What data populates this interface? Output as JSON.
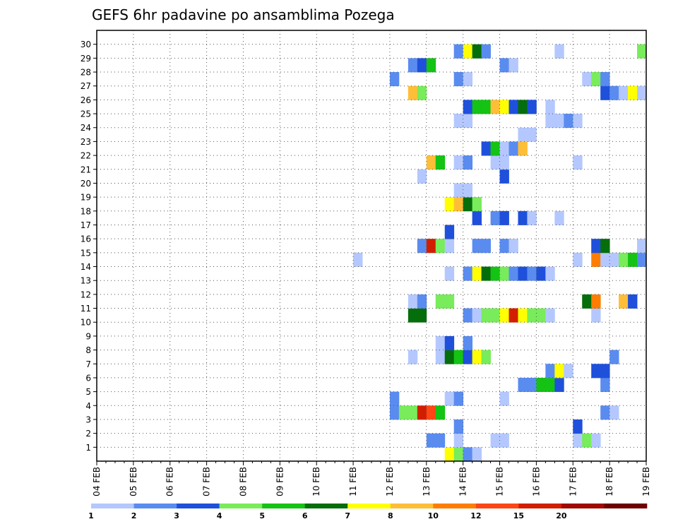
{
  "chart_data": {
    "type": "heatmap",
    "title": "GEFS 6hr padavine po ansamblima Pozega",
    "xlabel": "",
    "ylabel": "",
    "x_ticks": [
      "04 FEB",
      "05 FEB",
      "06 FEB",
      "07 FEB",
      "08 FEB",
      "09 FEB",
      "10 FEB",
      "11 FEB",
      "12 FEB",
      "13 FEB",
      "14 FEB",
      "15 FEB",
      "16 FEB",
      "17 FEB",
      "18 FEB",
      "19 FEB"
    ],
    "y_ticks": [
      1,
      2,
      3,
      4,
      5,
      6,
      7,
      8,
      9,
      10,
      11,
      12,
      13,
      14,
      15,
      16,
      17,
      18,
      19,
      20,
      21,
      22,
      23,
      24,
      25,
      26,
      27,
      28,
      29,
      30
    ],
    "ylim": [
      0,
      30
    ],
    "x_range": [
      "04 FEB 00Z",
      "19 FEB 00Z"
    ],
    "time_step_hours": 6,
    "grid": true,
    "colorbar": {
      "levels": [
        "1",
        "2",
        "3",
        "4",
        "5",
        "6",
        "7",
        "8",
        "10",
        "12",
        "15",
        "20",
        ""
      ],
      "colors": [
        "#b4c8ff",
        "#5a8cf0",
        "#1e50dc",
        "#78ec5a",
        "#14c314",
        "#046e0a",
        "#ffff00",
        "#ffbe37",
        "#ff7d00",
        "#ff4614",
        "#d21e00",
        "#a00a00",
        "#6e0000"
      ]
    },
    "cells": [
      {
        "member": 0,
        "step": 38,
        "level": 7
      },
      {
        "member": 0,
        "step": 39,
        "level": 4
      },
      {
        "member": 0,
        "step": 40,
        "level": 2
      },
      {
        "member": 0,
        "step": 41,
        "level": 1
      },
      {
        "member": 1,
        "step": 36,
        "level": 2
      },
      {
        "member": 1,
        "step": 37,
        "level": 2
      },
      {
        "member": 1,
        "step": 39,
        "level": 1
      },
      {
        "member": 1,
        "step": 43,
        "level": 1
      },
      {
        "member": 1,
        "step": 44,
        "level": 1
      },
      {
        "member": 1,
        "step": 52,
        "level": 1
      },
      {
        "member": 1,
        "step": 53,
        "level": 4
      },
      {
        "member": 1,
        "step": 54,
        "level": 1
      },
      {
        "member": 2,
        "step": 39,
        "level": 2
      },
      {
        "member": 2,
        "step": 52,
        "level": 3
      },
      {
        "member": 3,
        "step": 32,
        "level": 2
      },
      {
        "member": 3,
        "step": 33,
        "level": 4
      },
      {
        "member": 3,
        "step": 34,
        "level": 4
      },
      {
        "member": 3,
        "step": 35,
        "level": 11
      },
      {
        "member": 3,
        "step": 36,
        "level": 10
      },
      {
        "member": 3,
        "step": 37,
        "level": 5
      },
      {
        "member": 3,
        "step": 55,
        "level": 2
      },
      {
        "member": 3,
        "step": 56,
        "level": 1
      },
      {
        "member": 4,
        "step": 32,
        "level": 2
      },
      {
        "member": 4,
        "step": 38,
        "level": 1
      },
      {
        "member": 4,
        "step": 39,
        "level": 2
      },
      {
        "member": 4,
        "step": 44,
        "level": 1
      },
      {
        "member": 5,
        "step": 46,
        "level": 2
      },
      {
        "member": 5,
        "step": 47,
        "level": 2
      },
      {
        "member": 5,
        "step": 48,
        "level": 5
      },
      {
        "member": 5,
        "step": 49,
        "level": 5
      },
      {
        "member": 5,
        "step": 50,
        "level": 3
      },
      {
        "member": 5,
        "step": 55,
        "level": 2
      },
      {
        "member": 6,
        "step": 49,
        "level": 2
      },
      {
        "member": 6,
        "step": 50,
        "level": 7
      },
      {
        "member": 6,
        "step": 51,
        "level": 1
      },
      {
        "member": 6,
        "step": 54,
        "level": 3
      },
      {
        "member": 6,
        "step": 55,
        "level": 3
      },
      {
        "member": 7,
        "step": 34,
        "level": 1
      },
      {
        "member": 7,
        "step": 37,
        "level": 1
      },
      {
        "member": 7,
        "step": 38,
        "level": 6
      },
      {
        "member": 7,
        "step": 39,
        "level": 5
      },
      {
        "member": 7,
        "step": 40,
        "level": 3
      },
      {
        "member": 7,
        "step": 41,
        "level": 7
      },
      {
        "member": 7,
        "step": 42,
        "level": 4
      },
      {
        "member": 7,
        "step": 56,
        "level": 2
      },
      {
        "member": 8,
        "step": 37,
        "level": 1
      },
      {
        "member": 8,
        "step": 38,
        "level": 3
      },
      {
        "member": 8,
        "step": 40,
        "level": 2
      },
      {
        "member": 10,
        "step": 34,
        "level": 6
      },
      {
        "member": 10,
        "step": 35,
        "level": 6
      },
      {
        "member": 10,
        "step": 40,
        "level": 2
      },
      {
        "member": 10,
        "step": 41,
        "level": 1
      },
      {
        "member": 10,
        "step": 42,
        "level": 4
      },
      {
        "member": 10,
        "step": 43,
        "level": 4
      },
      {
        "member": 10,
        "step": 44,
        "level": 7
      },
      {
        "member": 10,
        "step": 45,
        "level": 11
      },
      {
        "member": 10,
        "step": 46,
        "level": 7
      },
      {
        "member": 10,
        "step": 47,
        "level": 4
      },
      {
        "member": 10,
        "step": 48,
        "level": 4
      },
      {
        "member": 10,
        "step": 49,
        "level": 1
      },
      {
        "member": 10,
        "step": 54,
        "level": 1
      },
      {
        "member": 11,
        "step": 34,
        "level": 1
      },
      {
        "member": 11,
        "step": 35,
        "level": 2
      },
      {
        "member": 11,
        "step": 37,
        "level": 4
      },
      {
        "member": 11,
        "step": 38,
        "level": 4
      },
      {
        "member": 11,
        "step": 53,
        "level": 6
      },
      {
        "member": 11,
        "step": 54,
        "level": 9
      },
      {
        "member": 11,
        "step": 57,
        "level": 8
      },
      {
        "member": 11,
        "step": 58,
        "level": 3
      },
      {
        "member": 13,
        "step": 38,
        "level": 1
      },
      {
        "member": 13,
        "step": 40,
        "level": 2
      },
      {
        "member": 13,
        "step": 41,
        "level": 7
      },
      {
        "member": 13,
        "step": 42,
        "level": 6
      },
      {
        "member": 13,
        "step": 43,
        "level": 5
      },
      {
        "member": 13,
        "step": 44,
        "level": 4
      },
      {
        "member": 13,
        "step": 45,
        "level": 2
      },
      {
        "member": 13,
        "step": 46,
        "level": 3
      },
      {
        "member": 13,
        "step": 47,
        "level": 2
      },
      {
        "member": 13,
        "step": 48,
        "level": 3
      },
      {
        "member": 13,
        "step": 49,
        "level": 1
      },
      {
        "member": 14,
        "step": 28,
        "level": 1
      },
      {
        "member": 14,
        "step": 52,
        "level": 1
      },
      {
        "member": 14,
        "step": 54,
        "level": 9
      },
      {
        "member": 14,
        "step": 55,
        "level": 1
      },
      {
        "member": 14,
        "step": 56,
        "level": 1
      },
      {
        "member": 14,
        "step": 57,
        "level": 4
      },
      {
        "member": 14,
        "step": 58,
        "level": 5
      },
      {
        "member": 14,
        "step": 59,
        "level": 2
      },
      {
        "member": 15,
        "step": 35,
        "level": 2
      },
      {
        "member": 15,
        "step": 36,
        "level": 11
      },
      {
        "member": 15,
        "step": 37,
        "level": 4
      },
      {
        "member": 15,
        "step": 38,
        "level": 1
      },
      {
        "member": 15,
        "step": 41,
        "level": 2
      },
      {
        "member": 15,
        "step": 42,
        "level": 2
      },
      {
        "member": 15,
        "step": 44,
        "level": 2
      },
      {
        "member": 15,
        "step": 45,
        "level": 1
      },
      {
        "member": 15,
        "step": 54,
        "level": 3
      },
      {
        "member": 15,
        "step": 55,
        "level": 6
      },
      {
        "member": 15,
        "step": 59,
        "level": 1
      },
      {
        "member": 16,
        "step": 38,
        "level": 3
      },
      {
        "member": 17,
        "step": 41,
        "level": 3
      },
      {
        "member": 17,
        "step": 43,
        "level": 2
      },
      {
        "member": 17,
        "step": 44,
        "level": 3
      },
      {
        "member": 17,
        "step": 46,
        "level": 3
      },
      {
        "member": 17,
        "step": 47,
        "level": 1
      },
      {
        "member": 17,
        "step": 50,
        "level": 1
      },
      {
        "member": 18,
        "step": 38,
        "level": 7
      },
      {
        "member": 18,
        "step": 39,
        "level": 8
      },
      {
        "member": 18,
        "step": 40,
        "level": 6
      },
      {
        "member": 18,
        "step": 41,
        "level": 4
      },
      {
        "member": 19,
        "step": 39,
        "level": 1
      },
      {
        "member": 19,
        "step": 40,
        "level": 1
      },
      {
        "member": 20,
        "step": 35,
        "level": 1
      },
      {
        "member": 20,
        "step": 44,
        "level": 3
      },
      {
        "member": 21,
        "step": 36,
        "level": 8
      },
      {
        "member": 21,
        "step": 37,
        "level": 5
      },
      {
        "member": 21,
        "step": 39,
        "level": 1
      },
      {
        "member": 21,
        "step": 40,
        "level": 2
      },
      {
        "member": 21,
        "step": 43,
        "level": 1
      },
      {
        "member": 21,
        "step": 44,
        "level": 1
      },
      {
        "member": 21,
        "step": 52,
        "level": 1
      },
      {
        "member": 22,
        "step": 42,
        "level": 3
      },
      {
        "member": 22,
        "step": 43,
        "level": 5
      },
      {
        "member": 22,
        "step": 44,
        "level": 1
      },
      {
        "member": 22,
        "step": 45,
        "level": 2
      },
      {
        "member": 22,
        "step": 46,
        "level": 8
      },
      {
        "member": 23,
        "step": 46,
        "level": 1
      },
      {
        "member": 23,
        "step": 47,
        "level": 1
      },
      {
        "member": 24,
        "step": 39,
        "level": 1
      },
      {
        "member": 24,
        "step": 40,
        "level": 1
      },
      {
        "member": 24,
        "step": 49,
        "level": 1
      },
      {
        "member": 24,
        "step": 50,
        "level": 1
      },
      {
        "member": 24,
        "step": 51,
        "level": 2
      },
      {
        "member": 24,
        "step": 52,
        "level": 1
      },
      {
        "member": 25,
        "step": 40,
        "level": 3
      },
      {
        "member": 25,
        "step": 41,
        "level": 5
      },
      {
        "member": 25,
        "step": 42,
        "level": 5
      },
      {
        "member": 25,
        "step": 43,
        "level": 8
      },
      {
        "member": 25,
        "step": 44,
        "level": 7
      },
      {
        "member": 25,
        "step": 45,
        "level": 3
      },
      {
        "member": 25,
        "step": 46,
        "level": 6
      },
      {
        "member": 25,
        "step": 47,
        "level": 3
      },
      {
        "member": 25,
        "step": 49,
        "level": 1
      },
      {
        "member": 26,
        "step": 34,
        "level": 8
      },
      {
        "member": 26,
        "step": 35,
        "level": 4
      },
      {
        "member": 26,
        "step": 55,
        "level": 3
      },
      {
        "member": 26,
        "step": 56,
        "level": 2
      },
      {
        "member": 26,
        "step": 57,
        "level": 1
      },
      {
        "member": 26,
        "step": 58,
        "level": 7
      },
      {
        "member": 26,
        "step": 59,
        "level": 1
      },
      {
        "member": 27,
        "step": 32,
        "level": 2
      },
      {
        "member": 27,
        "step": 39,
        "level": 2
      },
      {
        "member": 27,
        "step": 40,
        "level": 1
      },
      {
        "member": 27,
        "step": 53,
        "level": 1
      },
      {
        "member": 27,
        "step": 54,
        "level": 4
      },
      {
        "member": 27,
        "step": 55,
        "level": 2
      },
      {
        "member": 28,
        "step": 34,
        "level": 2
      },
      {
        "member": 28,
        "step": 35,
        "level": 3
      },
      {
        "member": 28,
        "step": 36,
        "level": 5
      },
      {
        "member": 28,
        "step": 44,
        "level": 2
      },
      {
        "member": 28,
        "step": 45,
        "level": 1
      },
      {
        "member": 29,
        "step": 39,
        "level": 2
      },
      {
        "member": 29,
        "step": 40,
        "level": 7
      },
      {
        "member": 29,
        "step": 41,
        "level": 6
      },
      {
        "member": 29,
        "step": 42,
        "level": 2
      },
      {
        "member": 29,
        "step": 50,
        "level": 1
      },
      {
        "member": 29,
        "step": 59,
        "level": 4
      }
    ]
  }
}
